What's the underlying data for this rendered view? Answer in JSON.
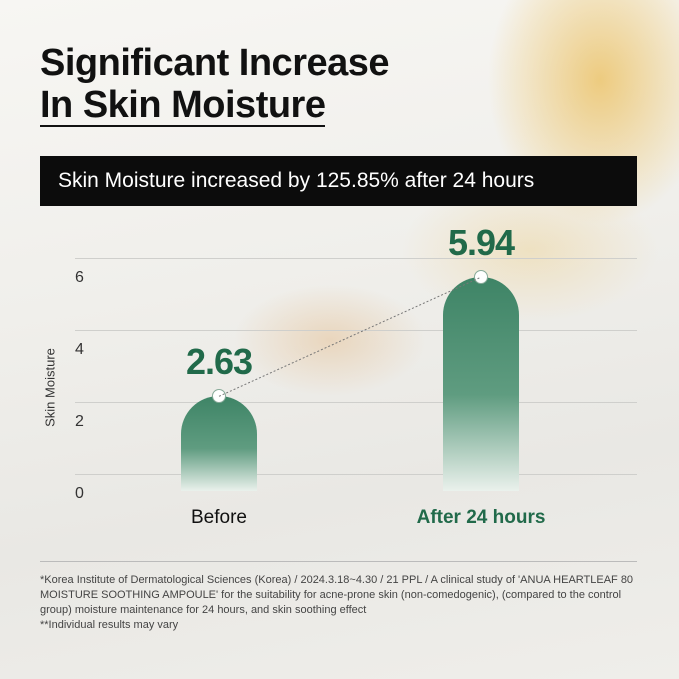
{
  "title": {
    "line1": "Significant Increase",
    "line2": "In Skin Moisture"
  },
  "banner": "Skin Moisture increased by 125.85%  after 24 hours",
  "chart_data": {
    "type": "bar",
    "categories": [
      "Before",
      "After 24 hours"
    ],
    "values": [
      2.63,
      5.94
    ],
    "value_labels": [
      "2.63",
      "5.94"
    ],
    "ylabel": "Skin Moisture",
    "yticks": [
      "0",
      "2",
      "4",
      "6"
    ],
    "ylim": [
      0,
      6.5
    ],
    "grid": true,
    "bar_color": "#3e8466",
    "label_color": "#216a4a"
  },
  "footnotes": [
    "*Korea Institute of Dermatological Sciences (Korea) / 2024.3.18~4.30 / 21 PPL / A clinical study of 'ANUA HEARTLEAF 80 MOISTURE SOOTHING AMPOULE' for the suitability for acne-prone skin (non-comedogenic), (compared to the control group) moisture maintenance for 24 hours, and skin soothing effect",
    "**Individual results may vary"
  ]
}
